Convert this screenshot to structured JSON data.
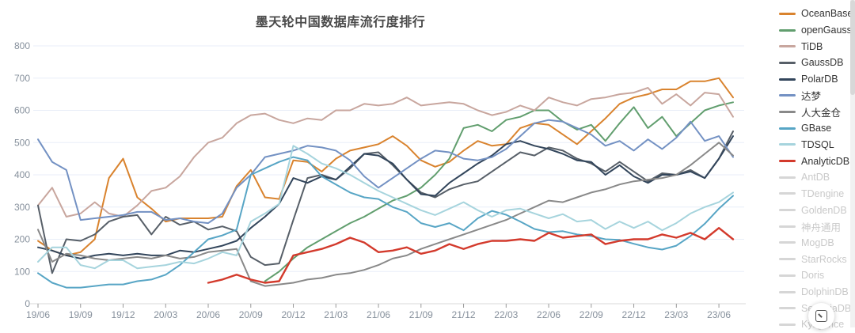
{
  "title": "墨天轮中国数据库流行度排行",
  "colors": {
    "grid": "#e8eef8",
    "axis_line": "#d9d9d9",
    "tick": "#999999",
    "axis_label": "#86909c",
    "title": "#4a4a4a",
    "inactive_legend": "#d6d6d6"
  },
  "y_axis": {
    "labels": [
      "0",
      "100",
      "200",
      "300",
      "400",
      "500",
      "600",
      "700",
      "800"
    ],
    "min": 0,
    "max": 800,
    "step": 100
  },
  "x_axis": {
    "tick_labels": [
      "19/06",
      "19/09",
      "19/12",
      "20/03",
      "20/06",
      "20/09",
      "20/12",
      "21/03",
      "21/06",
      "21/09",
      "21/12",
      "22/03",
      "22/06",
      "22/09",
      "22/12",
      "23/03",
      "23/06"
    ]
  },
  "legend_inactive": [
    {
      "label": "AntDB"
    },
    {
      "label": "TDengine"
    },
    {
      "label": "GoldenDB"
    },
    {
      "label": "神舟通用"
    },
    {
      "label": "MogDB"
    },
    {
      "label": "StarRocks"
    },
    {
      "label": "Doris"
    },
    {
      "label": "DolphinDB"
    },
    {
      "label": "SequoiaDB"
    },
    {
      "label": "Kyligence"
    }
  ],
  "chart_data": {
    "type": "line",
    "title": "墨天轮中国数据库流行度排行",
    "xlabel": "",
    "ylabel": "",
    "ylim": [
      0,
      800
    ],
    "grid": true,
    "legend_position": "right",
    "x": [
      "19/06",
      "19/07",
      "19/08",
      "19/09",
      "19/10",
      "19/11",
      "19/12",
      "20/01",
      "20/02",
      "20/03",
      "20/04",
      "20/05",
      "20/06",
      "20/07",
      "20/08",
      "20/09",
      "20/10",
      "20/11",
      "20/12",
      "21/01",
      "21/02",
      "21/03",
      "21/04",
      "21/05",
      "21/06",
      "21/07",
      "21/08",
      "21/09",
      "21/10",
      "21/11",
      "21/12",
      "22/01",
      "22/02",
      "22/03",
      "22/04",
      "22/05",
      "22/06",
      "22/07",
      "22/08",
      "22/09",
      "22/10",
      "22/11",
      "22/12",
      "23/01",
      "23/02",
      "23/03",
      "23/04",
      "23/05",
      "23/06",
      "23/07"
    ],
    "series": [
      {
        "name": "OceanBase",
        "color": "#d9832e",
        "values": [
          195,
          165,
          150,
          160,
          200,
          390,
          450,
          330,
          295,
          255,
          265,
          265,
          265,
          270,
          365,
          415,
          330,
          325,
          445,
          440,
          410,
          450,
          475,
          485,
          495,
          520,
          490,
          445,
          425,
          440,
          475,
          505,
          490,
          495,
          545,
          560,
          555,
          525,
          495,
          535,
          575,
          620,
          640,
          650,
          665,
          665,
          690,
          690,
          700,
          640
        ]
      },
      {
        "name": "openGauss",
        "color": "#619e6e",
        "values": [
          null,
          null,
          null,
          null,
          null,
          null,
          null,
          null,
          null,
          null,
          null,
          null,
          null,
          null,
          null,
          null,
          70,
          100,
          140,
          175,
          200,
          225,
          250,
          270,
          295,
          320,
          335,
          360,
          400,
          450,
          545,
          555,
          535,
          570,
          580,
          600,
          600,
          565,
          540,
          555,
          505,
          560,
          610,
          545,
          580,
          520,
          560,
          600,
          615,
          625
        ]
      },
      {
        "name": "TiDB",
        "color": "#c8a69e",
        "values": [
          305,
          360,
          270,
          280,
          315,
          280,
          270,
          305,
          350,
          360,
          395,
          455,
          500,
          515,
          560,
          585,
          590,
          570,
          560,
          575,
          570,
          600,
          600,
          620,
          615,
          620,
          640,
          615,
          620,
          625,
          620,
          600,
          585,
          595,
          615,
          600,
          640,
          625,
          615,
          635,
          640,
          650,
          655,
          670,
          620,
          650,
          615,
          655,
          650,
          580
        ]
      },
      {
        "name": "GaussDB",
        "color": "#575f68",
        "values": [
          305,
          95,
          200,
          195,
          215,
          255,
          270,
          275,
          215,
          270,
          245,
          255,
          230,
          240,
          225,
          145,
          120,
          125,
          260,
          390,
          400,
          385,
          420,
          465,
          470,
          430,
          385,
          345,
          330,
          355,
          370,
          380,
          410,
          440,
          470,
          460,
          485,
          475,
          450,
          435,
          410,
          440,
          410,
          380,
          405,
          400,
          415,
          390,
          450,
          535
        ]
      },
      {
        "name": "PolarDB",
        "color": "#32455b",
        "values": [
          175,
          165,
          150,
          140,
          150,
          155,
          150,
          155,
          150,
          150,
          165,
          160,
          170,
          180,
          195,
          235,
          270,
          310,
          390,
          375,
          395,
          385,
          425,
          465,
          460,
          435,
          385,
          340,
          335,
          375,
          405,
          435,
          460,
          495,
          505,
          490,
          480,
          465,
          445,
          440,
          400,
          430,
          395,
          375,
          400,
          400,
          410,
          390,
          450,
          520
        ]
      },
      {
        "name": "达梦",
        "color": "#7391c3",
        "values": [
          510,
          440,
          415,
          260,
          265,
          270,
          275,
          285,
          285,
          260,
          265,
          255,
          250,
          280,
          360,
          400,
          455,
          465,
          475,
          490,
          485,
          475,
          445,
          395,
          360,
          390,
          420,
          450,
          475,
          470,
          450,
          445,
          455,
          480,
          520,
          560,
          570,
          565,
          545,
          525,
          490,
          505,
          475,
          510,
          480,
          515,
          565,
          505,
          520,
          455
        ]
      },
      {
        "name": "人大金仓",
        "color": "#898989",
        "values": [
          230,
          130,
          155,
          150,
          140,
          135,
          140,
          145,
          140,
          150,
          140,
          145,
          160,
          165,
          170,
          70,
          55,
          60,
          65,
          75,
          80,
          90,
          95,
          105,
          120,
          140,
          150,
          170,
          185,
          200,
          215,
          230,
          245,
          260,
          280,
          300,
          320,
          315,
          330,
          345,
          355,
          370,
          380,
          385,
          390,
          400,
          430,
          465,
          500,
          460
        ]
      },
      {
        "name": "GBase",
        "color": "#57a5c5",
        "values": [
          95,
          65,
          50,
          50,
          55,
          60,
          60,
          70,
          75,
          90,
          120,
          160,
          200,
          212,
          230,
          400,
          420,
          440,
          455,
          445,
          395,
          370,
          345,
          330,
          325,
          300,
          285,
          250,
          238,
          250,
          228,
          265,
          288,
          276,
          255,
          232,
          222,
          225,
          215,
          210,
          200,
          198,
          186,
          175,
          168,
          180,
          210,
          248,
          295,
          335
        ]
      },
      {
        "name": "TDSQL",
        "color": "#a6d4dd",
        "values": [
          130,
          175,
          175,
          120,
          110,
          135,
          135,
          110,
          115,
          120,
          130,
          125,
          140,
          160,
          150,
          255,
          280,
          310,
          490,
          465,
          435,
          420,
          400,
          375,
          350,
          330,
          310,
          290,
          275,
          295,
          315,
          290,
          270,
          290,
          295,
          280,
          265,
          278,
          255,
          260,
          232,
          255,
          235,
          255,
          228,
          250,
          280,
          300,
          315,
          345
        ]
      },
      {
        "name": "AnalyticDB",
        "color": "#d33a2c",
        "values": [
          null,
          null,
          null,
          null,
          null,
          null,
          null,
          null,
          null,
          null,
          null,
          null,
          65,
          75,
          90,
          75,
          65,
          70,
          150,
          160,
          170,
          185,
          205,
          190,
          160,
          165,
          175,
          155,
          165,
          185,
          170,
          185,
          195,
          195,
          200,
          195,
          220,
          205,
          210,
          215,
          185,
          195,
          200,
          200,
          215,
          205,
          220,
          200,
          235,
          200
        ]
      }
    ]
  }
}
